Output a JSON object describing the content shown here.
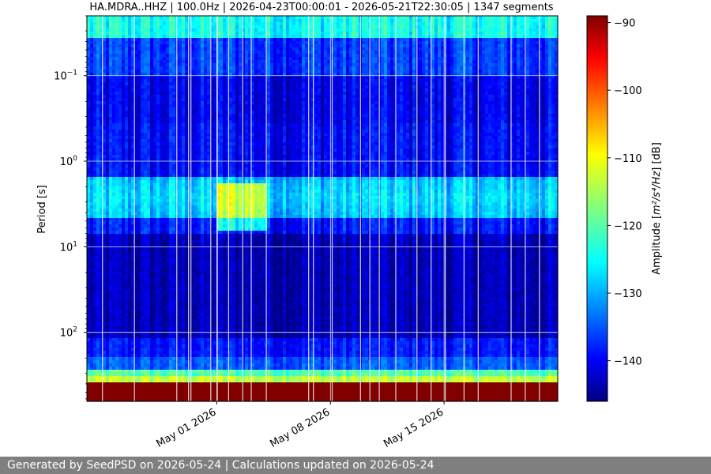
{
  "chart_data": {
    "type": "heatmap",
    "title": "HA.MDRA..HHZ | 100.0Hz | 2026-04-23T00:00:01 - 2026-05-21T22:30:05 | 1347 segments",
    "ylabel": "Period [s]",
    "y_scale": "log",
    "y_inverted": true,
    "y_tick_labels": [
      {
        "label": "10",
        "exp": "−1",
        "value": 0.1
      },
      {
        "label": "10",
        "exp": "0",
        "value": 1
      },
      {
        "label": "10",
        "exp": "1",
        "value": 10
      },
      {
        "label": "10",
        "exp": "2",
        "value": 100
      }
    ],
    "ylim": [
      0.02,
      640
    ],
    "x_tick_labels": [
      {
        "label": "May 01 2026",
        "date": "2026-05-01"
      },
      {
        "label": "May 08 2026",
        "date": "2026-05-08"
      },
      {
        "label": "May 15 2026",
        "date": "2026-05-15"
      }
    ],
    "xlim": [
      "2026-04-23",
      "2026-05-22"
    ],
    "grid": true,
    "colormap": "jet",
    "colorbar": {
      "label_prefix": "Amplitude [",
      "label_unit": "m²/s⁴/Hz",
      "label_suffix": "] [dB]",
      "ticks": [
        -90,
        -100,
        -110,
        -120,
        -130,
        -140
      ],
      "range": [
        -146,
        -89
      ]
    },
    "features": [
      {
        "desc": "high-frequency band",
        "period_range": [
          0.02,
          0.03
        ],
        "level_db": -130
      },
      {
        "desc": "microseism peak",
        "period_range": [
          2,
          5
        ],
        "level_db": -128
      },
      {
        "desc": "quiet band",
        "period_range": [
          10,
          100
        ],
        "level_db": -143
      },
      {
        "desc": "long-period band",
        "period_range": [
          200,
          400
        ],
        "level_db": -120
      },
      {
        "desc": "longest periods",
        "period_range": [
          400,
          640
        ],
        "level_db": -89
      },
      {
        "desc": "storm event",
        "date_range": [
          "2026-05-01",
          "2026-05-04"
        ],
        "period_range": [
          2,
          4
        ],
        "level_db": -113
      }
    ]
  },
  "footer": {
    "text": "Generated by SeedPSD on 2026-05-24 | Calculations updated on 2026-05-24"
  }
}
